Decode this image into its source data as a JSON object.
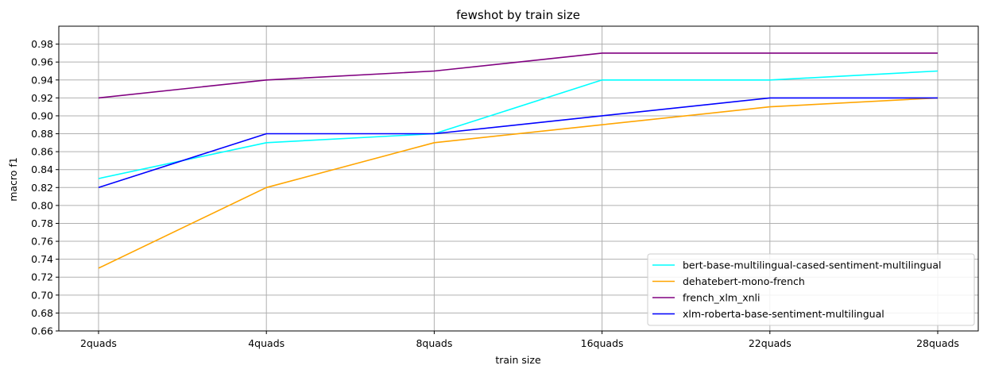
{
  "chart_data": {
    "type": "line",
    "title": "fewshot by train size",
    "xlabel": "train size",
    "ylabel": "macro f1",
    "categories": [
      "2quads",
      "4quads",
      "8quads",
      "16quads",
      "22quads",
      "28quads"
    ],
    "ylim": [
      0.66,
      1.0
    ],
    "yticks": [
      "0.66",
      "0.68",
      "0.70",
      "0.72",
      "0.74",
      "0.76",
      "0.78",
      "0.80",
      "0.82",
      "0.84",
      "0.86",
      "0.88",
      "0.90",
      "0.92",
      "0.94",
      "0.96",
      "0.98"
    ],
    "grid": true,
    "legend_position": "lower-right",
    "series": [
      {
        "name": "bert-base-multilingual-cased-sentiment-multilingual",
        "color": "#00ffff",
        "values": [
          0.83,
          0.87,
          0.88,
          0.94,
          0.94,
          0.95
        ]
      },
      {
        "name": "dehatebert-mono-french",
        "color": "#ffa500",
        "values": [
          0.73,
          0.82,
          0.87,
          0.89,
          0.91,
          0.92
        ]
      },
      {
        "name": "french_xlm_xnli",
        "color": "#800080",
        "values": [
          0.92,
          0.94,
          0.95,
          0.97,
          0.97,
          0.97
        ]
      },
      {
        "name": "xlm-roberta-base-sentiment-multilingual",
        "color": "#0000ff",
        "values": [
          0.82,
          0.88,
          0.88,
          0.9,
          0.92,
          0.92
        ]
      }
    ]
  }
}
